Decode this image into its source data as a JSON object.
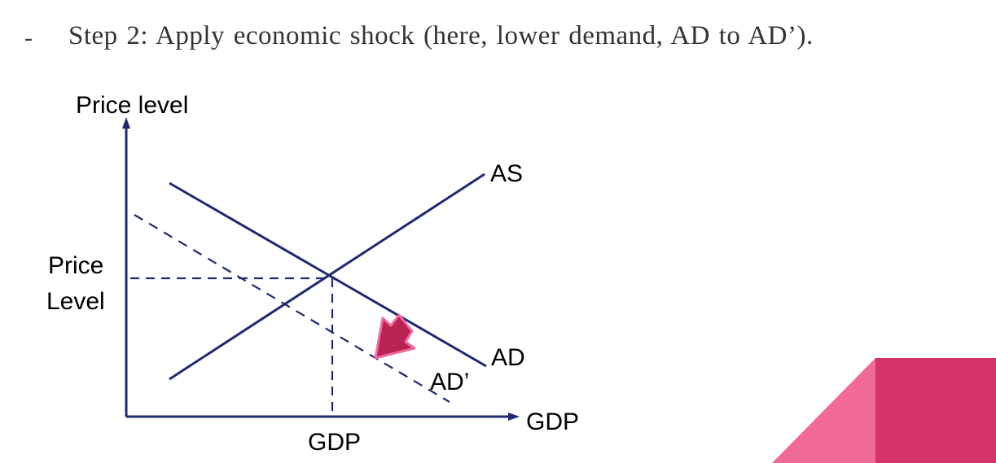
{
  "bullet": {
    "marker": "-",
    "text": "Step 2: Apply economic shock (here, lower demand, AD to AD’)."
  },
  "diagram": {
    "y_axis_label": "Price level",
    "x_axis_label": "GDP",
    "price_label_line1": "Price",
    "price_label_line2": "Level",
    "gdp_tick_label": "GDP",
    "as_label": "AS",
    "ad_label": "AD",
    "ad_shifted_label": "AD’"
  },
  "colors": {
    "axis": "#1f2a6e",
    "curve": "#1f2a6e",
    "arrow_fill": "#b8234f",
    "arrow_outline": "#f06aa0",
    "corner_light": "#ef6a95",
    "corner_dark": "#d1336a"
  }
}
